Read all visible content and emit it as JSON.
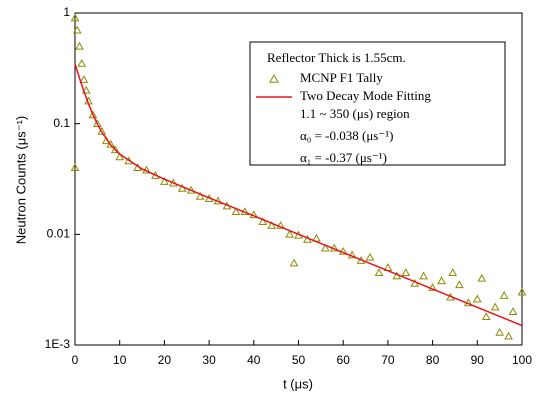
{
  "chart_data": {
    "type": "scatter",
    "xlabel": "t (μs)",
    "ylabel": "Neutron Counts (μs⁻¹)",
    "xlim": [
      0,
      100
    ],
    "xticks": [
      0,
      10,
      20,
      30,
      40,
      50,
      60,
      70,
      80,
      90,
      100
    ],
    "ylim": [
      0.001,
      1
    ],
    "yticks": [
      {
        "value": 0.001,
        "label": "1E-3"
      },
      0.01,
      0.1,
      1
    ],
    "log_y": true,
    "grid": false,
    "legend": "upper right",
    "legend_title": "Reflector Thick is 1.55cm.",
    "annotations": [
      "1.1 ~ 350 (μs) region",
      "α₀ = -0.038 (μs⁻¹)",
      "α₁ = -0.37 (μs⁻¹)"
    ],
    "series": [
      {
        "name": "MCNP F1 Tally",
        "type": "scatter",
        "color": "#8c8c00",
        "x": [
          0,
          0,
          0.5,
          1,
          1.5,
          2,
          2.5,
          3,
          4,
          5,
          6,
          7,
          8,
          9,
          10,
          12,
          14,
          16,
          18,
          20,
          22,
          24,
          26,
          28,
          30,
          32,
          34,
          36,
          38,
          40,
          42,
          44,
          46,
          48,
          49,
          50,
          52,
          54,
          56,
          58,
          60,
          62,
          64,
          66,
          68,
          70,
          72,
          74,
          76,
          78,
          80,
          82,
          84,
          84.5,
          86,
          88,
          90,
          91,
          92,
          94,
          95,
          96,
          97,
          98,
          100
        ],
        "values": [
          0.9,
          0.04,
          0.7,
          0.5,
          0.35,
          0.25,
          0.2,
          0.16,
          0.12,
          0.1,
          0.085,
          0.07,
          0.065,
          0.058,
          0.05,
          0.046,
          0.04,
          0.038,
          0.034,
          0.03,
          0.029,
          0.026,
          0.025,
          0.022,
          0.021,
          0.02,
          0.018,
          0.016,
          0.016,
          0.015,
          0.013,
          0.012,
          0.012,
          0.01,
          0.0055,
          0.0098,
          0.009,
          0.0092,
          0.0075,
          0.0075,
          0.007,
          0.0065,
          0.0058,
          0.0062,
          0.0045,
          0.005,
          0.0042,
          0.0045,
          0.0036,
          0.0042,
          0.0033,
          0.0038,
          0.0027,
          0.0045,
          0.0035,
          0.0024,
          0.0026,
          0.004,
          0.0018,
          0.0022,
          0.0013,
          0.0028,
          0.0012,
          0.002,
          0.003
        ]
      },
      {
        "name": "Two Decay Mode Fitting",
        "type": "line",
        "color": "#e8141c",
        "x": [
          0,
          1,
          2,
          3,
          4,
          5,
          6,
          8,
          10,
          15,
          20,
          30,
          40,
          50,
          60,
          70,
          80,
          90,
          100
        ],
        "values": [
          0.347,
          0.258,
          0.196,
          0.152,
          0.121,
          0.0994,
          0.0838,
          0.064,
          0.053,
          0.039,
          0.0315,
          0.0214,
          0.0147,
          0.01,
          0.00685,
          0.00469,
          0.0032,
          0.00219,
          0.0015
        ]
      }
    ]
  }
}
